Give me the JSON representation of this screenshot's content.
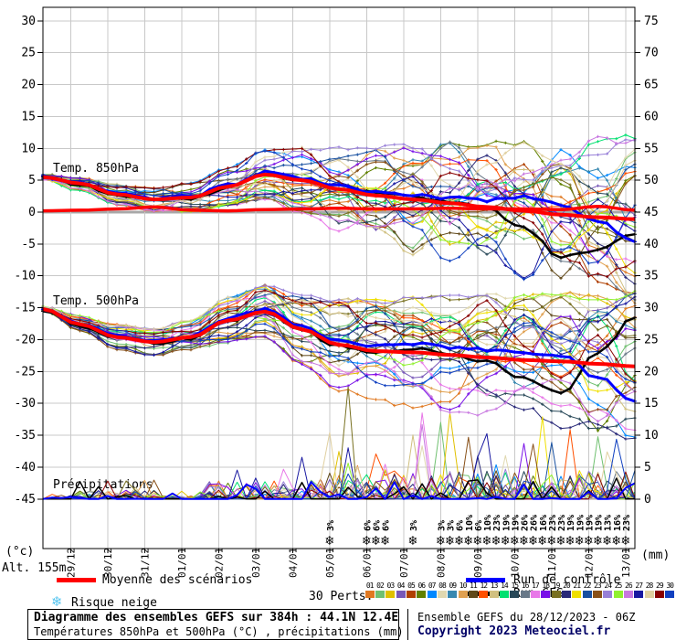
{
  "axes": {
    "left_ticks": [
      "30",
      "25",
      "20",
      "15",
      "10",
      "5",
      "0",
      "-5",
      "-10",
      "-15",
      "-20",
      "-25",
      "-30",
      "-35",
      "-40",
      "-45"
    ],
    "right_ticks": [
      "75",
      "70",
      "65",
      "60",
      "55",
      "50",
      "45",
      "40",
      "35",
      "30",
      "25",
      "20",
      "15",
      "10",
      "5",
      "0"
    ],
    "left_unit": "(°c)",
    "right_unit": "(mm)",
    "alt_label": "Alt. 155m"
  },
  "legend": {
    "mean_label": "Moyenne des scénarios",
    "control_label": "Run de contrôle",
    "gfs_label": "Run GFS",
    "perts_label": "30 Perts.",
    "snow_label": "Risque neige",
    "snow_icon": "❄",
    "pert_numbers": [
      "01",
      "02",
      "03",
      "04",
      "05",
      "06",
      "07",
      "08",
      "09",
      "10",
      "11",
      "12",
      "13",
      "14",
      "15",
      "16",
      "17",
      "18",
      "19",
      "20",
      "21",
      "22",
      "23",
      "24",
      "25",
      "26",
      "27",
      "28",
      "29",
      "30"
    ]
  },
  "footer": {
    "title": "Diagramme des ensembles GEFS sur 384h : 44.1N 12.4E",
    "subtitle": "Températures 850hPa et 500hPa (°C) , précipitations (mm)",
    "run_info": "Ensemble GEFS du 28/12/2023 - 06Z",
    "copyright": "Copyright 2023 Meteociel.fr"
  },
  "chart_data": {
    "type": "line",
    "title": "Diagramme des ensembles GEFS sur 384h : 44.1N 12.4E",
    "x_axis": {
      "tick_labels": [
        "29/12",
        "30/12",
        "31/12",
        "01/01",
        "02/01",
        "03/01",
        "04/01",
        "05/01",
        "06/01",
        "07/01",
        "08/01",
        "09/01",
        "10/01",
        "11/01",
        "12/01",
        "13/01"
      ],
      "hours_per_step": 6,
      "total_steps": 64,
      "first_tick_step": 3,
      "steps_per_day": 4
    },
    "y_left": {
      "unit": "(°c)",
      "min": -45,
      "max": 30,
      "tick_step": 5
    },
    "y_right": {
      "unit": "(mm)",
      "min": 0,
      "max": 75,
      "tick_step": 5
    },
    "grid": true,
    "series_labels": {
      "t850": "Temp. 850hPa",
      "t500": "Temp. 500hPa",
      "precip": "Précipitations"
    },
    "mean": {
      "name": "Moyenne des scénarios",
      "color": "#FF0000",
      "t850_daily": [
        5.5,
        4.5,
        2.8,
        2.0,
        2.3,
        4.0,
        5.9,
        5.0,
        3.6,
        2.6,
        2.0,
        1.4,
        0.8,
        0.2,
        -0.4,
        -0.8,
        -1.1
      ],
      "t500_daily": [
        -15.2,
        -17.6,
        -19.6,
        -20.4,
        -19.6,
        -17.0,
        -15.6,
        -18.4,
        -20.8,
        -21.8,
        -22.0,
        -22.4,
        -22.8,
        -23.2,
        -23.4,
        -23.8,
        -24.2
      ],
      "precip_daily": [
        0.2,
        0.3,
        0.5,
        0.8,
        0.3,
        0.2,
        0.4,
        0.5,
        0.6,
        0.5,
        0.5,
        0.6,
        0.5,
        0.5,
        0.4,
        0.9,
        0.3
      ]
    },
    "control": {
      "name": "Run de contrôle",
      "color": "#0000FF",
      "t850_daily": [
        5.6,
        4.6,
        2.9,
        2.1,
        2.5,
        4.2,
        6.3,
        5.4,
        4.2,
        3.2,
        2.6,
        2.2,
        1.8,
        2.4,
        1.2,
        -1.5,
        -4.5
      ],
      "t500_daily": [
        -15.1,
        -17.5,
        -19.5,
        -20.3,
        -19.4,
        -16.6,
        -15.2,
        -18.0,
        -20.2,
        -21.0,
        -20.6,
        -21.2,
        -21.6,
        -22.0,
        -22.4,
        -26.0,
        -29.5
      ]
    },
    "gfs": {
      "name": "Run GFS",
      "color": "#000000",
      "t850_daily": [
        5.4,
        4.4,
        2.7,
        2.0,
        2.2,
        3.9,
        6.0,
        5.1,
        3.8,
        3.0,
        2.4,
        1.6,
        0.6,
        -2.5,
        -7.0,
        -6.0,
        -3.5
      ],
      "t500_daily": [
        -15.3,
        -17.7,
        -19.7,
        -20.5,
        -19.8,
        -17.2,
        -15.4,
        -18.6,
        -21.0,
        -22.0,
        -21.4,
        -22.2,
        -23.5,
        -26.0,
        -28.5,
        -22.0,
        -16.5
      ]
    },
    "spread_daily": {
      "t850": [
        0.7,
        0.9,
        1.1,
        1.2,
        1.5,
        2.0,
        2.6,
        3.4,
        4.4,
        5.2,
        5.8,
        6.4,
        6.8,
        7.2,
        7.8,
        8.4,
        8.8
      ],
      "t500": [
        0.7,
        0.9,
        1.3,
        1.4,
        1.8,
        2.4,
        2.8,
        3.8,
        4.8,
        5.4,
        5.8,
        6.2,
        6.6,
        6.8,
        7.2,
        7.6,
        7.8
      ]
    },
    "members": {
      "count": 30,
      "colors": [
        "#E07820",
        "#70C070",
        "#E0C000",
        "#7858B8",
        "#B04000",
        "#608000",
        "#0088FF",
        "#E0D8B0",
        "#3888B0",
        "#E0A050",
        "#604818",
        "#FF5000",
        "#D0C080",
        "#00E070",
        "#284858",
        "#687888",
        "#E878E8",
        "#7810E8",
        "#787020",
        "#282878",
        "#F0E000",
        "#1850A0",
        "#885018",
        "#9880D8",
        "#90F030",
        "#C878E0",
        "#1818A0",
        "#E0D0A0",
        "#880000",
        "#1040C0"
      ]
    },
    "snow_risk": {
      "label": "Risque neige",
      "icon_color": "#58C6F0",
      "pct_color": "#2424C8",
      "points": [
        {
          "step": 31,
          "pct": 3
        },
        {
          "step": 35,
          "pct": 6
        },
        {
          "step": 36,
          "pct": 6
        },
        {
          "step": 37,
          "pct": 6
        },
        {
          "step": 40,
          "pct": 3
        },
        {
          "step": 43,
          "pct": 3
        },
        {
          "step": 44,
          "pct": 3
        },
        {
          "step": 45,
          "pct": 6
        },
        {
          "step": 46,
          "pct": 10
        },
        {
          "step": 47,
          "pct": 6
        },
        {
          "step": 48,
          "pct": 10
        },
        {
          "step": 49,
          "pct": 23
        },
        {
          "step": 50,
          "pct": 19
        },
        {
          "step": 51,
          "pct": 19
        },
        {
          "step": 52,
          "pct": 26
        },
        {
          "step": 53,
          "pct": 26
        },
        {
          "step": 54,
          "pct": 16
        },
        {
          "step": 55,
          "pct": 23
        },
        {
          "step": 56,
          "pct": 23
        },
        {
          "step": 57,
          "pct": 19
        },
        {
          "step": 58,
          "pct": 19
        },
        {
          "step": 59,
          "pct": 19
        },
        {
          "step": 60,
          "pct": 19
        },
        {
          "step": 61,
          "pct": 13
        },
        {
          "step": 62,
          "pct": 16
        },
        {
          "step": 63,
          "pct": 23
        }
      ]
    },
    "colors": {
      "grid": "#C8C8C8",
      "zero_line": "#A8A8A8",
      "frame": "#000000"
    }
  }
}
